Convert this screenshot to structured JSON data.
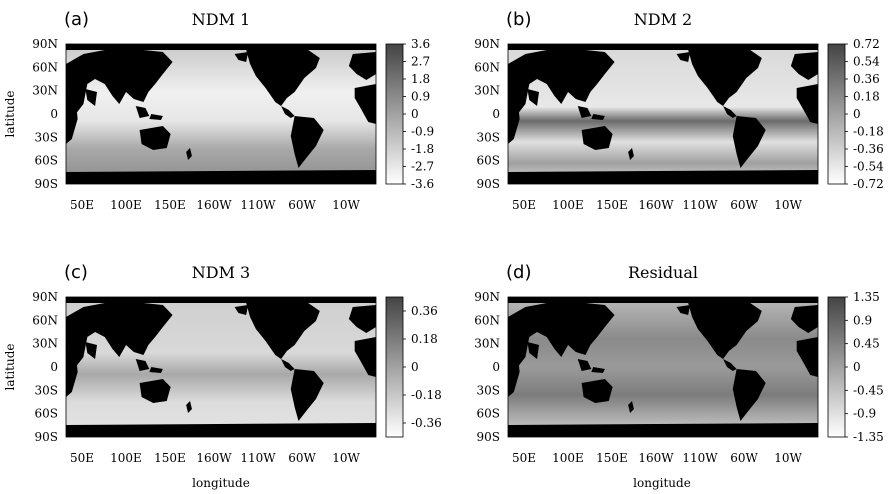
{
  "figure": {
    "x_axis_label": "longitude",
    "y_axis_label": "latitude"
  },
  "chart_data": [
    {
      "type": "heatmap",
      "panel_tag": "(a)",
      "title": "NDM 1",
      "x_ticks": [
        "50E",
        "100E",
        "150E",
        "160W",
        "110W",
        "60W",
        "10W"
      ],
      "y_ticks": [
        "90N",
        "60N",
        "30N",
        "0",
        "30S",
        "60S",
        "90S"
      ],
      "xlabel": "",
      "ylabel": "latitude",
      "colorbar": {
        "ticks": [
          "3.6",
          "2.7",
          "1.8",
          "0.9",
          "0",
          "-0.9",
          "-1.8",
          "-2.7",
          "-3.6"
        ],
        "range": [
          -3.6,
          3.6
        ]
      }
    },
    {
      "type": "heatmap",
      "panel_tag": "(b)",
      "title": "NDM 2",
      "x_ticks": [
        "50E",
        "100E",
        "150E",
        "160W",
        "110W",
        "60W",
        "10W"
      ],
      "y_ticks": [
        "90N",
        "60N",
        "30N",
        "0",
        "30S",
        "60S",
        "90S"
      ],
      "xlabel": "",
      "ylabel": "",
      "colorbar": {
        "ticks": [
          "0.72",
          "0.54",
          "0.36",
          "0.18",
          "0",
          "-0.18",
          "-0.36",
          "-0.54",
          "-0.72"
        ],
        "range": [
          -0.72,
          0.72
        ]
      }
    },
    {
      "type": "heatmap",
      "panel_tag": "(c)",
      "title": "NDM 3",
      "x_ticks": [
        "50E",
        "100E",
        "150E",
        "160W",
        "110W",
        "60W",
        "10W"
      ],
      "y_ticks": [
        "90N",
        "60N",
        "30N",
        "0",
        "30S",
        "60S",
        "90S"
      ],
      "xlabel": "longitude",
      "ylabel": "latitude",
      "colorbar": {
        "ticks": [
          "0.36",
          "0.18",
          "0",
          "-0.18",
          "-0.36"
        ],
        "range": [
          -0.45,
          0.45
        ]
      }
    },
    {
      "type": "heatmap",
      "panel_tag": "(d)",
      "title": "Residual",
      "x_ticks": [
        "50E",
        "100E",
        "150E",
        "160W",
        "110W",
        "60W",
        "10W"
      ],
      "y_ticks": [
        "90N",
        "60N",
        "30N",
        "0",
        "30S",
        "60S",
        "90S"
      ],
      "xlabel": "longitude",
      "ylabel": "",
      "colorbar": {
        "ticks": [
          "1.35",
          "0.9",
          "0.45",
          "0",
          "-0.45",
          "-0.9",
          "-1.35"
        ],
        "range": [
          -1.35,
          1.35
        ]
      }
    }
  ]
}
